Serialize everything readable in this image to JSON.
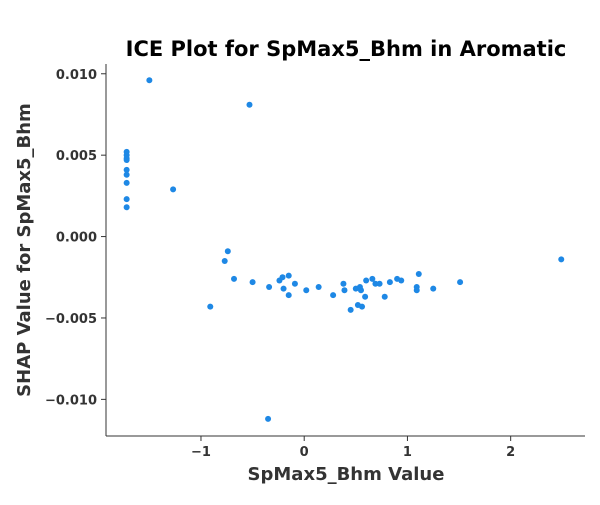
{
  "chart_data": {
    "type": "scatter",
    "title": "ICE Plot for SpMax5_Bhm in Aromatic",
    "xlabel": "SpMax5_Bhm Value",
    "ylabel": "SHAP Value for SpMax5_Bhm",
    "xlim": [
      -1.92,
      2.72
    ],
    "ylim": [
      -0.01225,
      0.0106
    ],
    "x_ticks": [
      -1,
      0,
      1,
      2
    ],
    "x_tick_labels": [
      "−1",
      "0",
      "1",
      "2"
    ],
    "y_ticks": [
      0.01,
      0.005,
      0.0,
      -0.005,
      -0.01
    ],
    "y_tick_labels": [
      "0.010",
      "0.005",
      "0.000",
      "−0.005",
      "−0.010"
    ],
    "grid": false,
    "marker_color": "#1e88e5",
    "points": [
      {
        "x": -1.72,
        "y": 0.0052
      },
      {
        "x": -1.72,
        "y": 0.005
      },
      {
        "x": -1.72,
        "y": 0.0048
      },
      {
        "x": -1.72,
        "y": 0.0047
      },
      {
        "x": -1.72,
        "y": 0.0041
      },
      {
        "x": -1.72,
        "y": 0.0038
      },
      {
        "x": -1.72,
        "y": 0.0033
      },
      {
        "x": -1.72,
        "y": 0.0023
      },
      {
        "x": -1.72,
        "y": 0.0018
      },
      {
        "x": -1.5,
        "y": 0.0096
      },
      {
        "x": -1.27,
        "y": 0.0029
      },
      {
        "x": -0.53,
        "y": 0.0081
      },
      {
        "x": -0.91,
        "y": -0.0043
      },
      {
        "x": -0.74,
        "y": -0.0009
      },
      {
        "x": -0.77,
        "y": -0.0015
      },
      {
        "x": -0.68,
        "y": -0.0026
      },
      {
        "x": -0.5,
        "y": -0.0028
      },
      {
        "x": -0.34,
        "y": -0.0031
      },
      {
        "x": -0.35,
        "y": -0.0112
      },
      {
        "x": -0.24,
        "y": -0.0027
      },
      {
        "x": -0.21,
        "y": -0.0025
      },
      {
        "x": -0.2,
        "y": -0.0032
      },
      {
        "x": -0.15,
        "y": -0.0024
      },
      {
        "x": -0.15,
        "y": -0.0036
      },
      {
        "x": -0.09,
        "y": -0.0029
      },
      {
        "x": 0.02,
        "y": -0.0033
      },
      {
        "x": 0.14,
        "y": -0.0031
      },
      {
        "x": 0.28,
        "y": -0.0036
      },
      {
        "x": 0.38,
        "y": -0.0029
      },
      {
        "x": 0.39,
        "y": -0.0033
      },
      {
        "x": 0.45,
        "y": -0.0045
      },
      {
        "x": 0.5,
        "y": -0.0032
      },
      {
        "x": 0.52,
        "y": -0.0042
      },
      {
        "x": 0.54,
        "y": -0.0031
      },
      {
        "x": 0.55,
        "y": -0.0033
      },
      {
        "x": 0.56,
        "y": -0.0043
      },
      {
        "x": 0.59,
        "y": -0.0037
      },
      {
        "x": 0.6,
        "y": -0.0027
      },
      {
        "x": 0.66,
        "y": -0.0026
      },
      {
        "x": 0.69,
        "y": -0.0029
      },
      {
        "x": 0.73,
        "y": -0.0029
      },
      {
        "x": 0.78,
        "y": -0.0037
      },
      {
        "x": 0.83,
        "y": -0.0028
      },
      {
        "x": 0.9,
        "y": -0.0026
      },
      {
        "x": 0.94,
        "y": -0.0027
      },
      {
        "x": 1.09,
        "y": -0.0031
      },
      {
        "x": 1.09,
        "y": -0.0033
      },
      {
        "x": 1.11,
        "y": -0.0023
      },
      {
        "x": 1.25,
        "y": -0.0032
      },
      {
        "x": 1.51,
        "y": -0.0028
      },
      {
        "x": 2.49,
        "y": -0.0014
      }
    ]
  }
}
